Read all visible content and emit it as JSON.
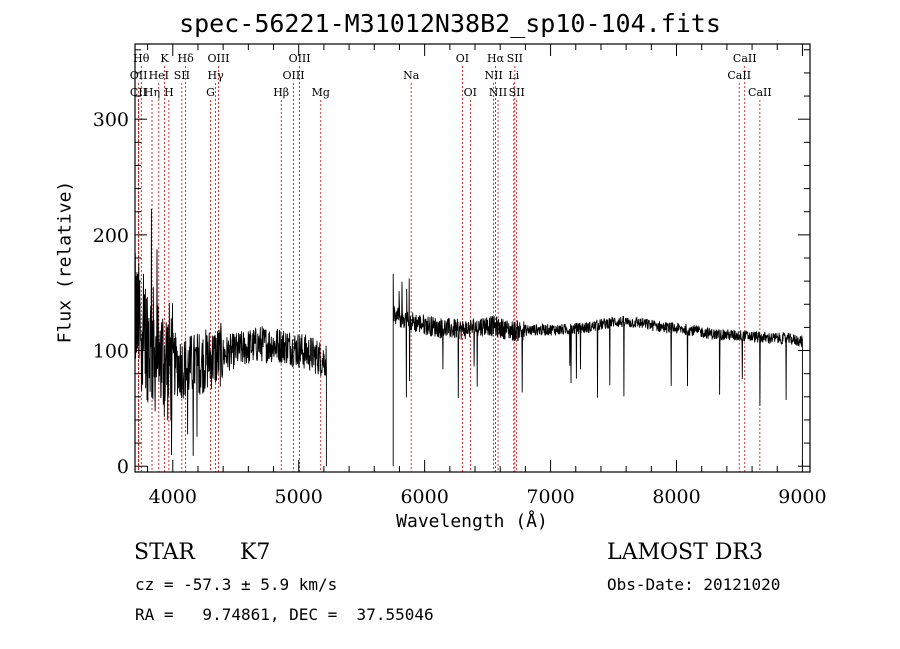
{
  "chart_data": {
    "type": "line",
    "title": "spec-56221-M31012N38B2_sp10-104.fits",
    "xlabel": "Wavelength (Å)",
    "ylabel": "Flux (relative)",
    "xlim": [
      3700,
      9060
    ],
    "ylim": [
      -5,
      365
    ],
    "x_ticks": [
      4000,
      5000,
      6000,
      7000,
      8000,
      9000
    ],
    "y_ticks": [
      0,
      100,
      200,
      300
    ],
    "grid": false,
    "series": [
      {
        "name": "flux",
        "segments": [
          {
            "x_start": 3700,
            "x_end": 5220,
            "baseline": [
              [
                3700,
                130
              ],
              [
                3800,
                110
              ],
              [
                3900,
                92
              ],
              [
                4100,
                85
              ],
              [
                4300,
                93
              ],
              [
                4500,
                100
              ],
              [
                4700,
                106
              ],
              [
                4900,
                104
              ],
              [
                5100,
                97
              ],
              [
                5200,
                92
              ]
            ]
          },
          {
            "x_start": 5750,
            "x_end": 9000,
            "baseline": [
              [
                5750,
                130
              ],
              [
                5900,
                125
              ],
              [
                6100,
                120
              ],
              [
                6300,
                118
              ],
              [
                6500,
                122
              ],
              [
                6700,
                117
              ],
              [
                6900,
                118
              ],
              [
                7100,
                118
              ],
              [
                7300,
                120
              ],
              [
                7500,
                125
              ],
              [
                7700,
                124
              ],
              [
                7900,
                120
              ],
              [
                8100,
                118
              ],
              [
                8300,
                114
              ],
              [
                8500,
                113
              ],
              [
                8700,
                111
              ],
              [
                8900,
                110
              ],
              [
                9000,
                108
              ]
            ]
          }
        ]
      }
    ],
    "line_labels": [
      {
        "label": "CII",
        "wl": 3727,
        "row": 3
      },
      {
        "label": "OII",
        "wl": 3729,
        "row": 2
      },
      {
        "label": "Hθ",
        "wl": 3750,
        "row": 1
      },
      {
        "label": "Hη",
        "wl": 3835,
        "row": 3
      },
      {
        "label": "HeI",
        "wl": 3889,
        "row": 2
      },
      {
        "label": "K",
        "wl": 3934,
        "row": 1
      },
      {
        "label": "H",
        "wl": 3969,
        "row": 3
      },
      {
        "label": "SII",
        "wl": 4072,
        "row": 2
      },
      {
        "label": "Hδ",
        "wl": 4102,
        "row": 1
      },
      {
        "label": "G",
        "wl": 4300,
        "row": 3
      },
      {
        "label": "Hγ",
        "wl": 4340,
        "row": 2
      },
      {
        "label": "OIII",
        "wl": 4363,
        "row": 1
      },
      {
        "label": "Hβ",
        "wl": 4861,
        "row": 3
      },
      {
        "label": "OIII",
        "wl": 4959,
        "row": 2
      },
      {
        "label": "OIII",
        "wl": 5007,
        "row": 1
      },
      {
        "label": "Mg",
        "wl": 5175,
        "row": 3
      },
      {
        "label": "Na",
        "wl": 5893,
        "row": 2
      },
      {
        "label": "OI",
        "wl": 6300,
        "row": 1
      },
      {
        "label": "OI",
        "wl": 6363,
        "row": 3
      },
      {
        "label": "NII",
        "wl": 6548,
        "row": 2
      },
      {
        "label": "Hα",
        "wl": 6563,
        "row": 1
      },
      {
        "label": "NII",
        "wl": 6583,
        "row": 3
      },
      {
        "label": "Li",
        "wl": 6708,
        "row": 2
      },
      {
        "label": "SII",
        "wl": 6716,
        "row": 1
      },
      {
        "label": "SII",
        "wl": 6731,
        "row": 3
      },
      {
        "label": "CaII",
        "wl": 8498,
        "row": 2
      },
      {
        "label": "CaII",
        "wl": 8542,
        "row": 1
      },
      {
        "label": "CaII",
        "wl": 8662,
        "row": 3
      }
    ],
    "line_color": "#cc0000"
  },
  "info": {
    "object_class": "STAR",
    "subclass": "K7",
    "survey": "LAMOST DR3",
    "cz_line": "cz = -57.3 ± 5.9 km/s",
    "obs_date_line": "Obs-Date: 20121020",
    "radec_line": "RA =   9.74861, DEC =  37.55046"
  }
}
